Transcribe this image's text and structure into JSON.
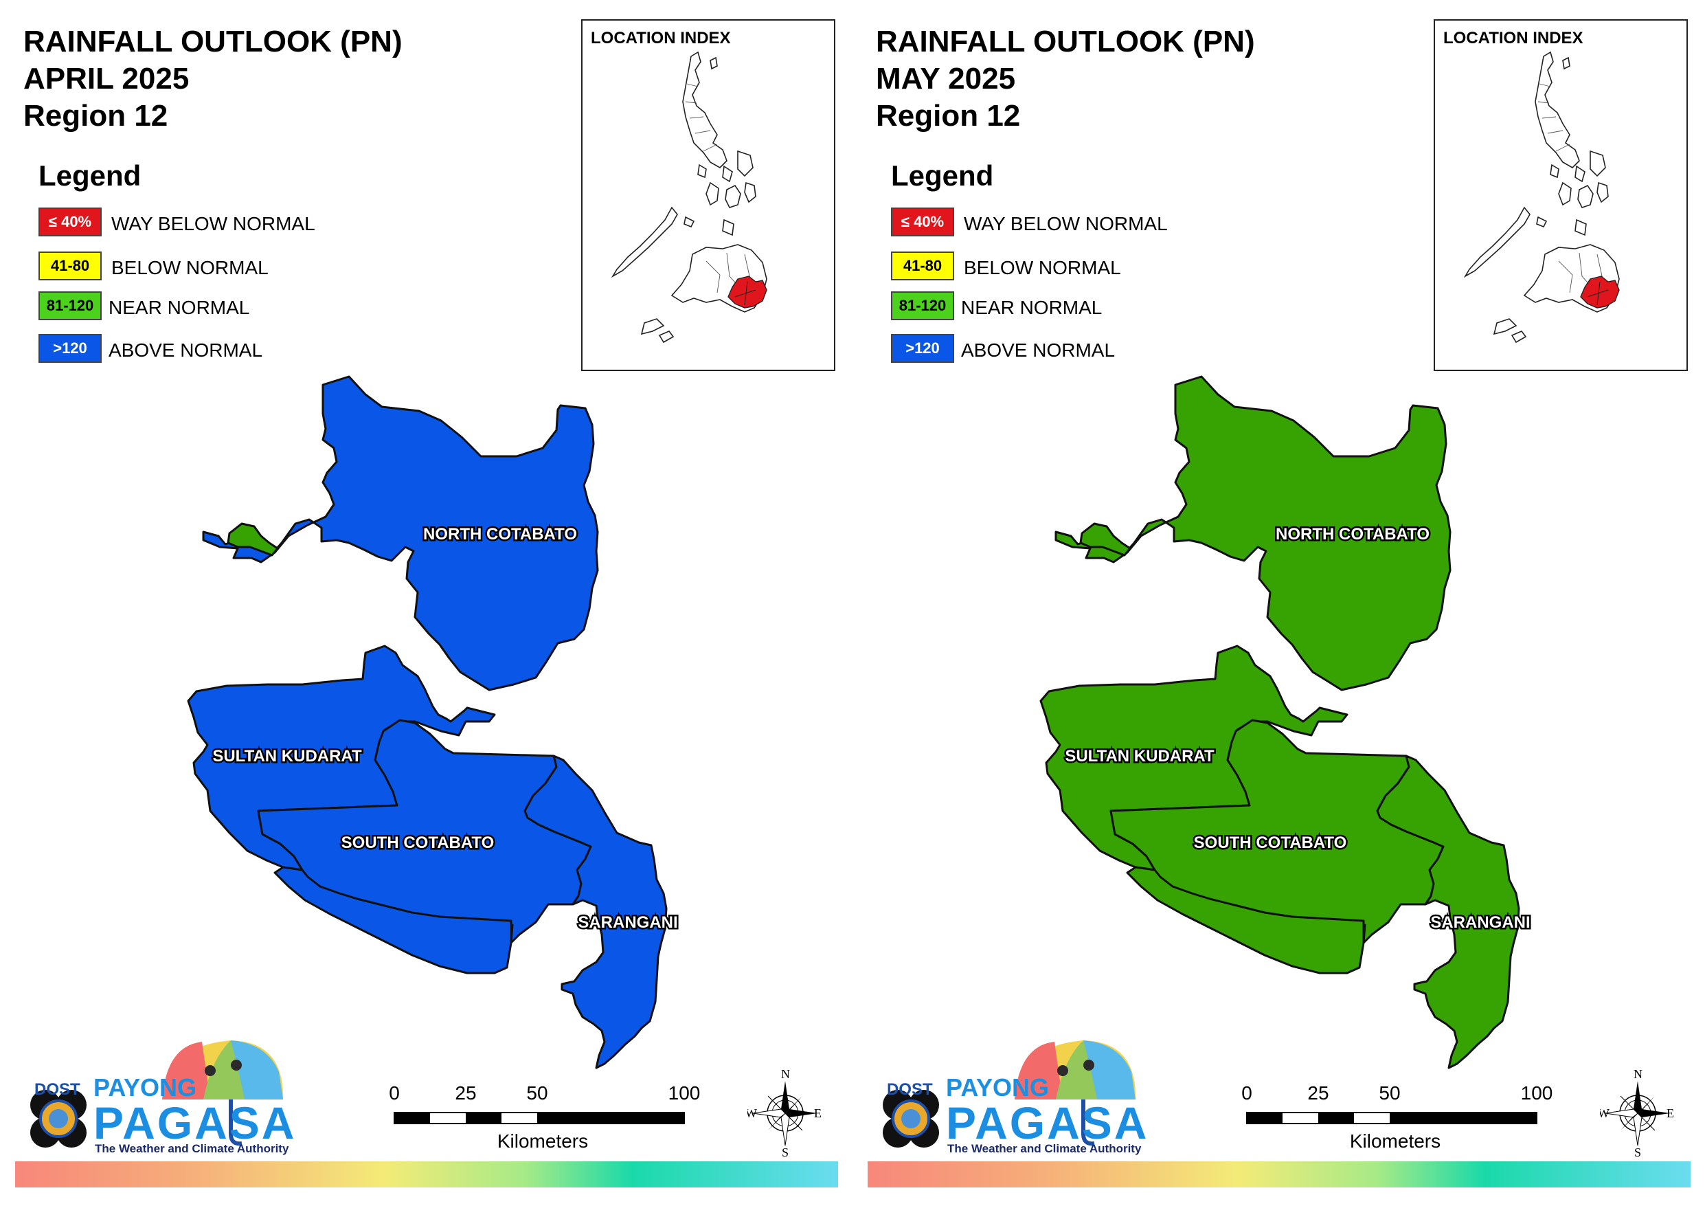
{
  "panels": [
    {
      "title_line1": "RAINFALL OUTLOOK (PN)",
      "title_line2": "APRIL 2025",
      "title_line3": "Region 12",
      "fill_color": "#0A56E6",
      "category": "ABOVE NORMAL"
    },
    {
      "title_line1": "RAINFALL OUTLOOK (PN)",
      "title_line2": "MAY 2025",
      "title_line3": "Region 12",
      "fill_color": "#36A303",
      "category": "NEAR NORMAL"
    }
  ],
  "legend": {
    "heading": "Legend",
    "items": [
      {
        "code": "≤ 40%",
        "label": "WAY BELOW NORMAL",
        "color": "#E0161C",
        "text_color": "#FFFFFF"
      },
      {
        "code": "41-80",
        "label": "BELOW NORMAL",
        "color": "#FFFF00",
        "text_color": "#000000"
      },
      {
        "code": "81-120",
        "label": "NEAR NORMAL",
        "color": "#4CD11C",
        "text_color": "#000000"
      },
      {
        "code": ">120",
        "label": "ABOVE NORMAL",
        "color": "#0A56E6",
        "text_color": "#FFFFFF"
      }
    ]
  },
  "inset": {
    "title": "LOCATION INDEX",
    "highlight_color": "#E0161C"
  },
  "map_labels": {
    "north_cotabato": "NORTH COTABATO",
    "sultan_kudarat": "SULTAN KUDARAT",
    "south_cotabato": "SOUTH COTABATO",
    "sarangani": "SARANGANI"
  },
  "enclave_color": "#36A303",
  "scale": {
    "ticks": [
      "0",
      "25",
      "50",
      "100"
    ],
    "unit": "Kilometers"
  },
  "compass": {
    "n": "N",
    "s": "S",
    "e": "E",
    "w": "W"
  },
  "logo": {
    "dost": "DOST",
    "payong": "PAYONG",
    "pagasa": "PAGASA",
    "tagline": "The Weather and Climate Authority"
  }
}
